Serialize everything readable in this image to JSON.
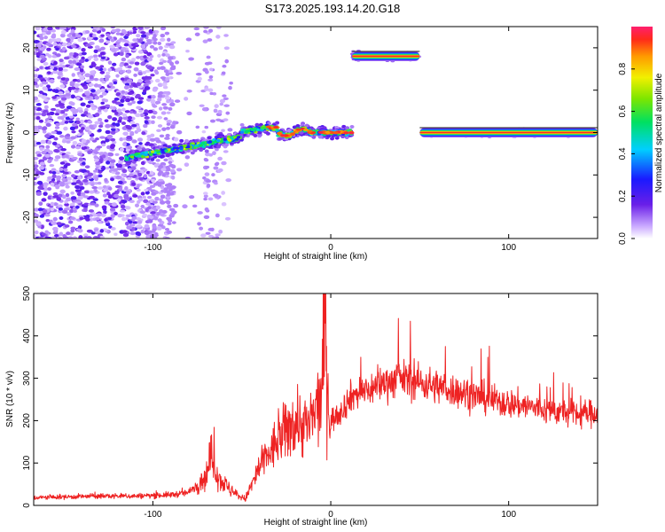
{
  "title": "S173.2025.193.14.20.G18",
  "colors": {
    "snr_line": "#ee2222",
    "spectrum_low": "#7a2ff0",
    "spectrum_mid": "#00d8ff",
    "spectrum_high": "#ff2a2a",
    "background": "#ffffff"
  },
  "chart_data": [
    {
      "type": "heatmap",
      "name": "spectrogram",
      "xlabel": "Height of straight line (km)",
      "ylabel": "Frequency (Hz)",
      "xlim": [
        -167,
        150
      ],
      "ylim": [
        -25,
        25
      ],
      "x_ticks": [
        -100,
        0,
        100
      ],
      "x_tick_labels": [
        "-100",
        "0",
        "100"
      ],
      "y_ticks": [
        -20,
        -10,
        0,
        10,
        20
      ],
      "y_tick_labels": [
        "-20",
        "-10",
        "0",
        "10",
        "20"
      ],
      "grid": false,
      "colorbar": {
        "label": "Normalized spectral amplitude",
        "range": [
          0,
          1
        ],
        "ticks": [
          0.0,
          0.2,
          0.4,
          0.6,
          0.8
        ],
        "tick_labels": [
          "0.0",
          "0.2",
          "0.4",
          "0.6",
          "0.8"
        ],
        "colormap": "rainbow"
      },
      "features": [
        {
          "description": "broadband noise",
          "x_range": [
            -167,
            -55
          ],
          "freq_range": [
            -25,
            25
          ],
          "amplitude": 0.2
        },
        {
          "description": "tone drifting to 0 Hz",
          "x_range": [
            -115,
            12
          ],
          "freq_start": -6,
          "freq_end": 0,
          "amplitude": 0.5
        },
        {
          "description": "tone at 18 Hz",
          "x_range": [
            12,
            50
          ],
          "freq": 18,
          "amplitude": 0.95
        },
        {
          "description": "tone at 0 Hz",
          "x_range": [
            50,
            150
          ],
          "freq": 0,
          "amplitude": 0.95
        }
      ]
    },
    {
      "type": "line",
      "name": "snr",
      "xlabel": "Height of straight line (km)",
      "ylabel": "SNR (10 * v/v)",
      "xlim": [
        -167,
        150
      ],
      "ylim": [
        0,
        500
      ],
      "x_ticks": [
        -100,
        0,
        100
      ],
      "x_tick_labels": [
        "-100",
        "0",
        "100"
      ],
      "y_ticks": [
        0,
        100,
        200,
        300,
        400,
        500
      ],
      "y_tick_labels": [
        "0",
        "100",
        "200",
        "300",
        "400",
        "500"
      ],
      "grid": false,
      "series": [
        {
          "x": [
            -167,
            -150,
            -130,
            -110,
            -90,
            -80,
            -70,
            -67,
            -63,
            -55,
            -48,
            -40,
            -30,
            -20,
            -12,
            -5,
            -3,
            -2,
            0,
            5,
            12,
            20,
            30,
            40,
            50,
            60,
            70,
            80,
            90,
            100,
            110,
            120,
            130,
            140,
            150
          ],
          "y": [
            18,
            20,
            22,
            22,
            25,
            30,
            70,
            120,
            65,
            30,
            15,
            90,
            150,
            200,
            185,
            260,
            500,
            280,
            200,
            220,
            260,
            270,
            290,
            300,
            290,
            280,
            270,
            260,
            250,
            240,
            235,
            225,
            220,
            215,
            220
          ]
        }
      ]
    }
  ]
}
